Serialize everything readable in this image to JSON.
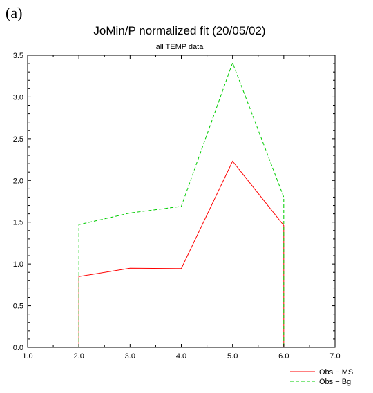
{
  "panel_label": "(a)",
  "chart_data": {
    "type": "line",
    "title": "JoMin/P normalized fit (20/05/02)",
    "subtitle": "all TEMP data",
    "xlabel": "",
    "ylabel": "",
    "xlim": [
      1.0,
      7.0
    ],
    "ylim": [
      0.0,
      3.5
    ],
    "x_ticks": [
      "1.0",
      "2.0",
      "3.0",
      "4.0",
      "5.0",
      "6.0",
      "7.0"
    ],
    "y_ticks": [
      "0.0",
      "0.5",
      "1.0",
      "1.5",
      "2.0",
      "2.5",
      "3.0",
      "3.5"
    ],
    "grid": false,
    "legend_position": "bottom-right",
    "series": [
      {
        "name": "Obs − MS",
        "color": "#ff0000",
        "dash": "solid",
        "points": [
          [
            2.0,
            0.0
          ],
          [
            2.0,
            0.85
          ],
          [
            3.0,
            0.95
          ],
          [
            4.0,
            0.945
          ],
          [
            5.0,
            2.23
          ],
          [
            6.0,
            1.46
          ],
          [
            6.0,
            0.0
          ]
        ]
      },
      {
        "name": "Obs − Bg",
        "color": "#00cc00",
        "dash": "dashed",
        "points": [
          [
            2.0,
            0.0
          ],
          [
            2.0,
            1.47
          ],
          [
            3.0,
            1.61
          ],
          [
            4.0,
            1.69
          ],
          [
            5.0,
            3.41
          ],
          [
            6.0,
            1.8
          ],
          [
            6.0,
            0.0
          ]
        ]
      }
    ]
  }
}
